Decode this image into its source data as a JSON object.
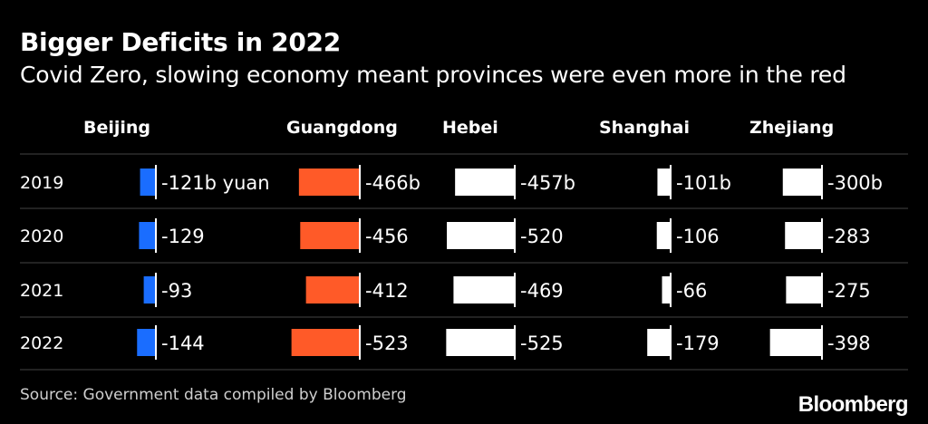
{
  "title": "Bigger Deficits in 2022",
  "subtitle": "Covid Zero, slowing economy meant provinces were even more in the red",
  "source": "Source: Government data compiled by Bloomberg",
  "logo": "Bloomberg",
  "colors": {
    "background": "#000000",
    "beijing": "#1a6dff",
    "guangdong": "#ff5a28",
    "other": "#ffffff",
    "rule": "#444444"
  },
  "chart_data": {
    "type": "bar",
    "orientation": "horizontal small multiples",
    "unit": "billion yuan",
    "categories": [
      "2019",
      "2020",
      "2021",
      "2022"
    ],
    "series": [
      {
        "name": "Beijing",
        "values": [
          -121,
          -129,
          -93,
          -144
        ],
        "labels": [
          "-121b yuan",
          "-129",
          "-93",
          "-144"
        ],
        "color": "#1a6dff"
      },
      {
        "name": "Guangdong",
        "values": [
          -466,
          -456,
          -412,
          -523
        ],
        "labels": [
          "-466b",
          "-456",
          "-412",
          "-523"
        ],
        "color": "#ff5a28"
      },
      {
        "name": "Hebei",
        "values": [
          -457,
          -520,
          -469,
          -525
        ],
        "labels": [
          "-457b",
          "-520",
          "-469",
          "-525"
        ],
        "color": "#ffffff"
      },
      {
        "name": "Shanghai",
        "values": [
          -101,
          -106,
          -66,
          -179
        ],
        "labels": [
          "-101b",
          "-106",
          "-66",
          "-179"
        ],
        "color": "#ffffff"
      },
      {
        "name": "Zhejiang",
        "values": [
          -300,
          -283,
          -275,
          -398
        ],
        "labels": [
          "-300b",
          "-283",
          "-275",
          "-398"
        ],
        "color": "#ffffff"
      }
    ]
  }
}
